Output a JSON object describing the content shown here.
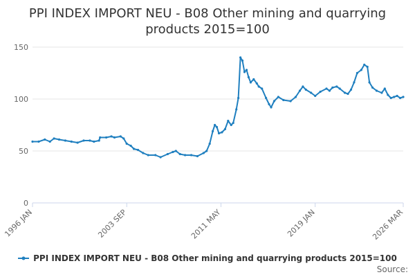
{
  "title_line1": "PPI INDEX IMPORT NEU - B08 Other mining and quarrying",
  "title_line2": "products 2015=100",
  "source_label": "Source:",
  "colors": {
    "series": "#1f7fbf",
    "grid": "#e6e6e6",
    "axis": "#ccd6eb"
  },
  "chart_data": {
    "type": "line",
    "ylim": [
      0,
      150
    ],
    "yticks": [
      0,
      50,
      100,
      150
    ],
    "x_start": "1996 JAN",
    "x_end": "2026 MAR",
    "xtick_labels": [
      "1996 JAN",
      "2003 SEP",
      "2011 MAY",
      "2019 JAN",
      "2026 MAR"
    ],
    "xlabel": "",
    "ylabel": "",
    "grid": true,
    "legend_position": "bottom",
    "series": [
      {
        "name": "PPI INDEX IMPORT NEU - B08 Other mining and quarrying products 2015=100",
        "points": [
          [
            "1996-01",
            59
          ],
          [
            "1996-07",
            59
          ],
          [
            "1997-01",
            61
          ],
          [
            "1997-06",
            59
          ],
          [
            "1997-10",
            62
          ],
          [
            "1998-03",
            61
          ],
          [
            "1998-09",
            60
          ],
          [
            "1999-03",
            59
          ],
          [
            "1999-09",
            58
          ],
          [
            "2000-03",
            60
          ],
          [
            "2000-09",
            60
          ],
          [
            "2001-01",
            59
          ],
          [
            "2001-06",
            60
          ],
          [
            "2001-07",
            63
          ],
          [
            "2002-01",
            63
          ],
          [
            "2002-06",
            64
          ],
          [
            "2002-09",
            63
          ],
          [
            "2003-03",
            64
          ],
          [
            "2003-06",
            62
          ],
          [
            "2003-09",
            57
          ],
          [
            "2004-01",
            55
          ],
          [
            "2004-04",
            52
          ],
          [
            "2004-08",
            51
          ],
          [
            "2005-01",
            48
          ],
          [
            "2005-06",
            46
          ],
          [
            "2006-01",
            46
          ],
          [
            "2006-06",
            44
          ],
          [
            "2007-01",
            47
          ],
          [
            "2007-06",
            49
          ],
          [
            "2007-09",
            50
          ],
          [
            "2008-01",
            47
          ],
          [
            "2008-06",
            46
          ],
          [
            "2008-12",
            46
          ],
          [
            "2009-06",
            45
          ],
          [
            "2009-12",
            48
          ],
          [
            "2010-03",
            50
          ],
          [
            "2010-06",
            57
          ],
          [
            "2010-09",
            69
          ],
          [
            "2010-11",
            75
          ],
          [
            "2011-01",
            73
          ],
          [
            "2011-03",
            67
          ],
          [
            "2011-06",
            68
          ],
          [
            "2011-09",
            71
          ],
          [
            "2011-12",
            79
          ],
          [
            "2012-03",
            75
          ],
          [
            "2012-05",
            77
          ],
          [
            "2012-08",
            90
          ],
          [
            "2012-10",
            101
          ],
          [
            "2012-12",
            140
          ],
          [
            "2013-02",
            137
          ],
          [
            "2013-04",
            126
          ],
          [
            "2013-06",
            128
          ],
          [
            "2013-08",
            121
          ],
          [
            "2013-10",
            116
          ],
          [
            "2014-01",
            119
          ],
          [
            "2014-04",
            115
          ],
          [
            "2014-06",
            112
          ],
          [
            "2014-09",
            110
          ],
          [
            "2015-01",
            101
          ],
          [
            "2015-04",
            95
          ],
          [
            "2015-06",
            92
          ],
          [
            "2015-09",
            98
          ],
          [
            "2016-01",
            102
          ],
          [
            "2016-06",
            99
          ],
          [
            "2017-01",
            98
          ],
          [
            "2017-06",
            102
          ],
          [
            "2017-10",
            108
          ],
          [
            "2018-01",
            112
          ],
          [
            "2018-04",
            109
          ],
          [
            "2018-09",
            106
          ],
          [
            "2019-01",
            103
          ],
          [
            "2019-06",
            107
          ],
          [
            "2019-12",
            110
          ],
          [
            "2020-03",
            108
          ],
          [
            "2020-06",
            111
          ],
          [
            "2020-10",
            112
          ],
          [
            "2021-01",
            110
          ],
          [
            "2021-06",
            106
          ],
          [
            "2021-09",
            105
          ],
          [
            "2021-12",
            109
          ],
          [
            "2022-03",
            116
          ],
          [
            "2022-06",
            125
          ],
          [
            "2022-10",
            128
          ],
          [
            "2023-01",
            133
          ],
          [
            "2023-04",
            131
          ],
          [
            "2023-06",
            116
          ],
          [
            "2023-09",
            111
          ],
          [
            "2024-01",
            108
          ],
          [
            "2024-06",
            106
          ],
          [
            "2024-09",
            110
          ],
          [
            "2024-12",
            104
          ],
          [
            "2025-03",
            101
          ],
          [
            "2025-06",
            102
          ],
          [
            "2025-09",
            103
          ],
          [
            "2025-12",
            101
          ],
          [
            "2026-03",
            102
          ]
        ]
      }
    ]
  }
}
